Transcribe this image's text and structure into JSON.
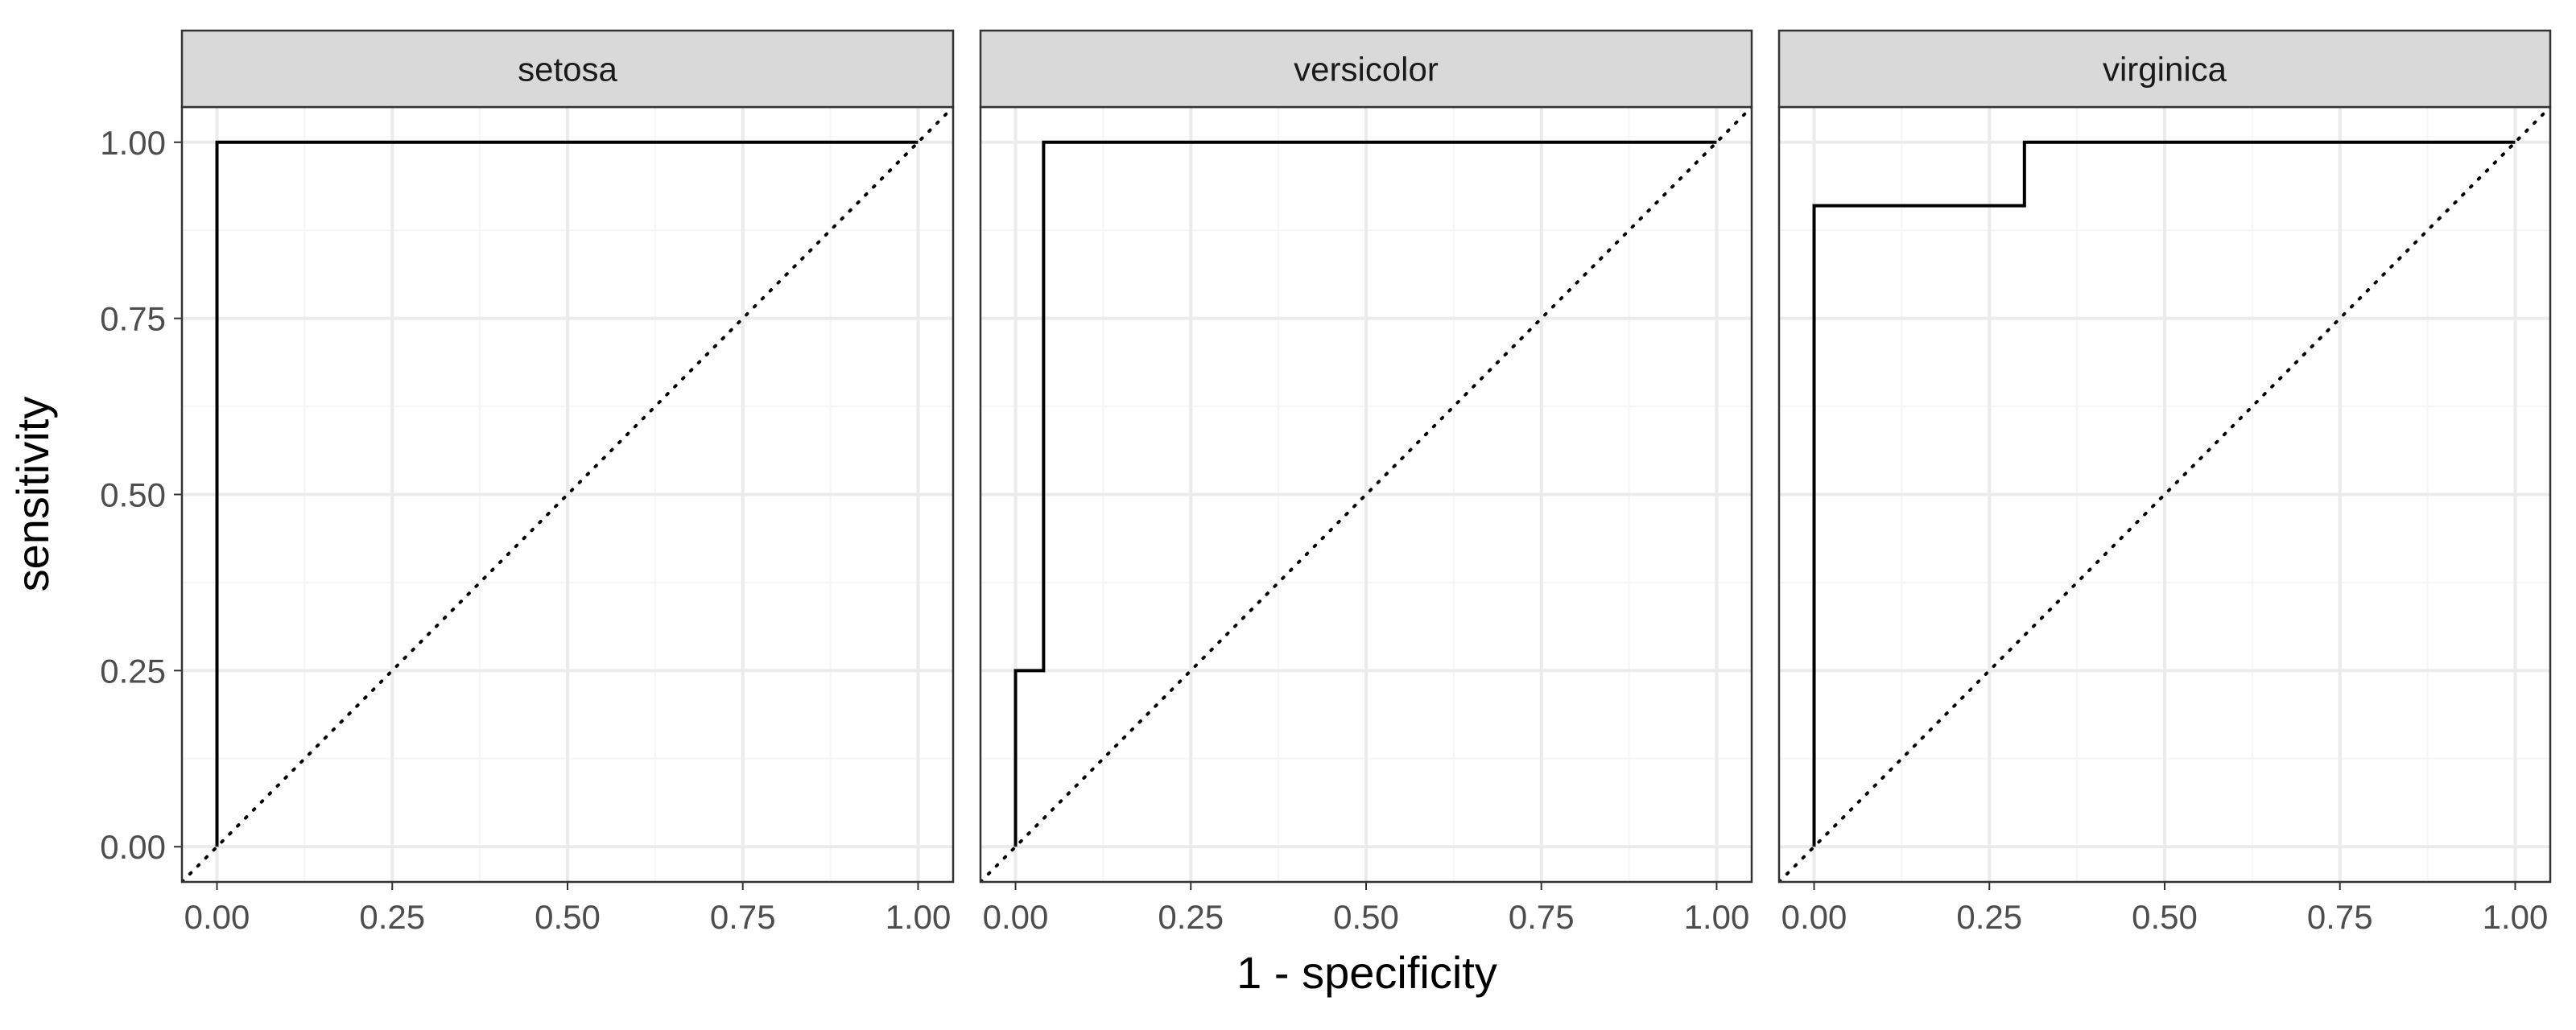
{
  "chart_data": {
    "type": "line",
    "xlabel": "1 - specificity",
    "ylabel": "sensitivity",
    "xlim": [
      -0.05,
      1.05
    ],
    "ylim": [
      -0.05,
      1.05
    ],
    "x_ticks": [
      "0.00",
      "0.25",
      "0.50",
      "0.75",
      "1.00"
    ],
    "y_ticks": [
      "0.00",
      "0.25",
      "0.50",
      "0.75",
      "1.00"
    ],
    "reference_line": "diagonal dotted",
    "grid": true,
    "panels": [
      {
        "label": "setosa",
        "x": [
          0,
          0,
          1
        ],
        "y": [
          0,
          1,
          1
        ]
      },
      {
        "label": "versicolor",
        "x": [
          0,
          0,
          0.04,
          0.04,
          1
        ],
        "y": [
          0,
          0.25,
          0.25,
          1,
          1
        ]
      },
      {
        "label": "virginica",
        "x": [
          0,
          0,
          0.3,
          0.3,
          1
        ],
        "y": [
          0,
          0.91,
          0.91,
          1,
          1
        ]
      }
    ]
  },
  "colors": {
    "panel_border": "#333333",
    "strip_fill": "#d9d9d9",
    "grid_major": "#ebebeb",
    "grid_minor": "#f5f5f5",
    "curve": "#000000"
  }
}
